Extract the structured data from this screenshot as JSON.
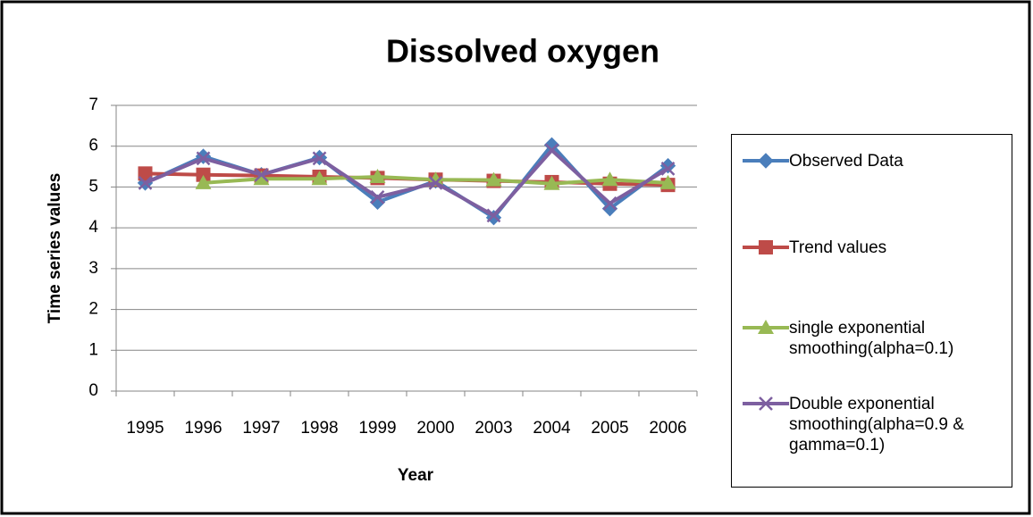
{
  "chart_data": {
    "type": "line",
    "title": "Dissolved oxygen",
    "x_label": "Year",
    "y_label": "Time series values",
    "categories": [
      "1995",
      "1996",
      "1997",
      "1998",
      "1999",
      "2000",
      "2003",
      "2004",
      "2005",
      "2006"
    ],
    "series": [
      {
        "name": "Observed Data",
        "color": "#4a7ebb",
        "marker": "diamond",
        "values": [
          5.1,
          5.75,
          5.3,
          5.72,
          4.63,
          5.15,
          4.25,
          6.03,
          4.47,
          5.52
        ]
      },
      {
        "name": "Trend values",
        "color": "#be4b48",
        "marker": "square",
        "values": [
          5.33,
          5.3,
          5.28,
          5.25,
          5.22,
          5.18,
          5.15,
          5.12,
          5.08,
          5.05
        ]
      },
      {
        "name": "single exponential smoothing(alpha=0.1)",
        "color": "#98b954",
        "marker": "triangle",
        "values": [
          null,
          5.1,
          5.2,
          5.2,
          5.25,
          5.18,
          5.17,
          5.08,
          5.18,
          5.1
        ]
      },
      {
        "name": "Double exponential smoothing(alpha=0.9 & gamma=0.1)",
        "color": "#7d5fa0",
        "marker": "x",
        "values": [
          5.1,
          5.7,
          5.3,
          5.7,
          4.75,
          5.1,
          4.3,
          5.9,
          4.6,
          5.45
        ]
      }
    ],
    "ylim": [
      0,
      7
    ],
    "yticks": [
      0,
      1,
      2,
      3,
      4,
      5,
      6,
      7
    ],
    "grid": true,
    "legend": "right"
  }
}
